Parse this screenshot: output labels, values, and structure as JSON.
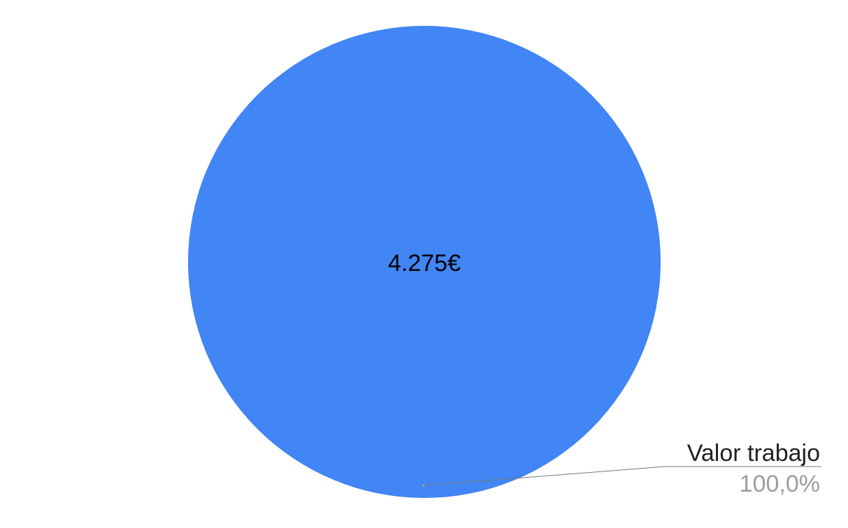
{
  "chart_data": {
    "type": "pie",
    "title": "",
    "slices": [
      {
        "label": "Valor trabajo",
        "value": 4275,
        "value_label": "4.275€",
        "percent_label": "100,0%",
        "color": "#4285f4"
      }
    ],
    "legend": "none",
    "label_color": "#222222",
    "percent_color": "#9e9e9e",
    "leader_line_color": "#777777"
  }
}
